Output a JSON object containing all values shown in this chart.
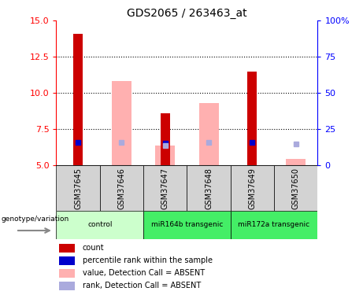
{
  "title": "GDS2065 / 263463_at",
  "samples": [
    "GSM37645",
    "GSM37646",
    "GSM37647",
    "GSM37648",
    "GSM37649",
    "GSM37650"
  ],
  "bar_data": [
    {
      "sample": "GSM37645",
      "value_dark": 14.1,
      "value_light": null,
      "rank_dark": 6.6,
      "rank_light": null
    },
    {
      "sample": "GSM37646",
      "value_dark": null,
      "value_light": 10.8,
      "rank_dark": null,
      "rank_light": 6.6
    },
    {
      "sample": "GSM37647",
      "value_dark": 8.6,
      "value_light": 6.35,
      "rank_dark": 6.55,
      "rank_light": 6.35
    },
    {
      "sample": "GSM37648",
      "value_dark": null,
      "value_light": 9.3,
      "rank_dark": null,
      "rank_light": 6.6
    },
    {
      "sample": "GSM37649",
      "value_dark": 11.5,
      "value_light": null,
      "rank_dark": 6.6,
      "rank_light": null
    },
    {
      "sample": "GSM37650",
      "value_dark": null,
      "value_light": 5.45,
      "rank_dark": null,
      "rank_light": 6.45
    }
  ],
  "group_info": [
    {
      "label": "control",
      "start": 0,
      "end": 1,
      "color": "#CCFFCC"
    },
    {
      "label": "miR164b transgenic",
      "start": 2,
      "end": 3,
      "color": "#44EE66"
    },
    {
      "label": "miR172a transgenic",
      "start": 4,
      "end": 5,
      "color": "#44EE66"
    }
  ],
  "ylim": [
    5.0,
    15.0
  ],
  "yticks_left": [
    5,
    7.5,
    10,
    12.5,
    15
  ],
  "yticks_right": [
    0,
    25,
    50,
    75,
    100
  ],
  "color_dark_red": "#CC0000",
  "color_light_red": "#FFB0B0",
  "color_dark_blue": "#0000CC",
  "color_light_blue": "#AAAADD",
  "sample_area_color": "#D3D3D3",
  "ybase": 5.0,
  "legend_items": [
    {
      "color": "#CC0000",
      "label": "count"
    },
    {
      "color": "#0000CC",
      "label": "percentile rank within the sample"
    },
    {
      "color": "#FFB0B0",
      "label": "value, Detection Call = ABSENT"
    },
    {
      "color": "#AAAADD",
      "label": "rank, Detection Call = ABSENT"
    }
  ]
}
